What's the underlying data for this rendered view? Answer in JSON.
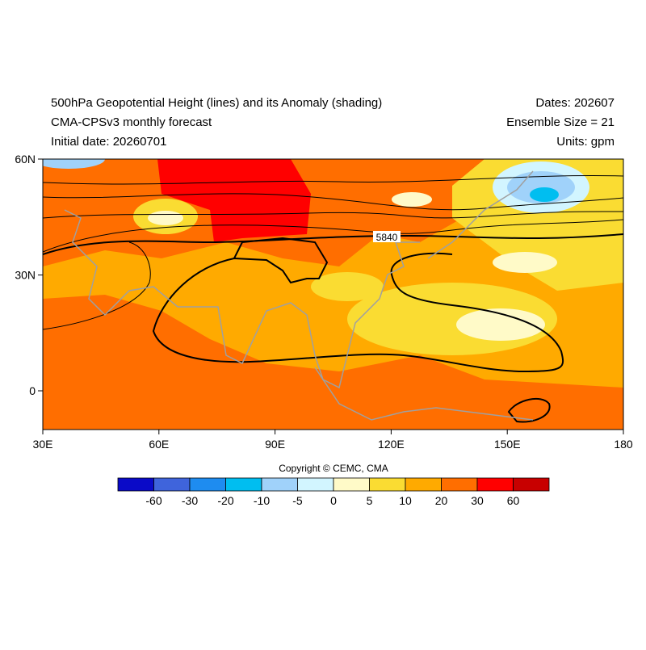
{
  "header": {
    "left": [
      "500hPa Geopotential Height (lines) and its Anomaly (shading)",
      "CMA-CPSv3 monthly forecast",
      "Initial date: 20260701"
    ],
    "right": [
      "Dates: 202607",
      "Ensemble Size = 21",
      "Units: gpm"
    ]
  },
  "map": {
    "y_labels": [
      "60N",
      "30N",
      "0"
    ],
    "x_labels": [
      "30E",
      "60E",
      "90E",
      "120E",
      "150E",
      "180"
    ],
    "contour_label": "5840"
  },
  "copyright": "Copyright © CEMC, CMA",
  "colorbar": {
    "colors": [
      "#0a0ac8",
      "#3f64dc",
      "#1e8cf0",
      "#00bef0",
      "#a0d2fa",
      "#d2f5ff",
      "#fffac8",
      "#fadc32",
      "#ffaa00",
      "#ff6e00",
      "#ff0000",
      "#c80000"
    ],
    "labels": [
      -60,
      -30,
      -20,
      -10,
      -5,
      0,
      5,
      10,
      20,
      30,
      60
    ]
  }
}
